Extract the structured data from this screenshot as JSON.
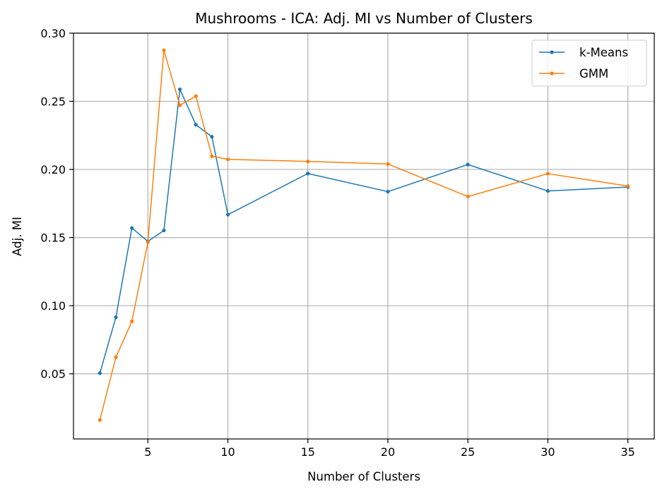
{
  "chart_data": {
    "type": "line",
    "title": "Mushrooms - ICA: Adj. MI vs Number of Clusters",
    "xlabel": "Number of Clusters",
    "ylabel": "Adj. MI",
    "xlim": [
      0.35,
      36.65
    ],
    "ylim": [
      0.0022,
      0.3
    ],
    "xticks": [
      5,
      10,
      15,
      20,
      25,
      30,
      35
    ],
    "xtick_labels": [
      "5",
      "10",
      "15",
      "20",
      "25",
      "30",
      "35"
    ],
    "yticks": [
      0.05,
      0.1,
      0.15,
      0.2,
      0.25,
      0.3
    ],
    "ytick_labels": [
      "0.05",
      "0.10",
      "0.15",
      "0.20",
      "0.25",
      "0.30"
    ],
    "grid": true,
    "legend_position": "top-right",
    "x": [
      2,
      3,
      4,
      5,
      6,
      7,
      8,
      9,
      10,
      15,
      20,
      25,
      30,
      35
    ],
    "series": [
      {
        "name": "k-Means",
        "color": "#1f77b4",
        "values": [
          0.0505,
          0.0915,
          0.157,
          0.1472,
          0.1552,
          0.2588,
          0.2328,
          0.224,
          0.1668,
          0.197,
          0.1837,
          0.2036,
          0.1842,
          0.1871
        ]
      },
      {
        "name": "GMM",
        "color": "#ff7f0e",
        "values": [
          0.0161,
          0.0622,
          0.0885,
          0.1466,
          0.2874,
          0.2471,
          0.2538,
          0.2097,
          0.2074,
          0.2059,
          0.204,
          0.1801,
          0.1969,
          0.1878
        ]
      }
    ]
  }
}
